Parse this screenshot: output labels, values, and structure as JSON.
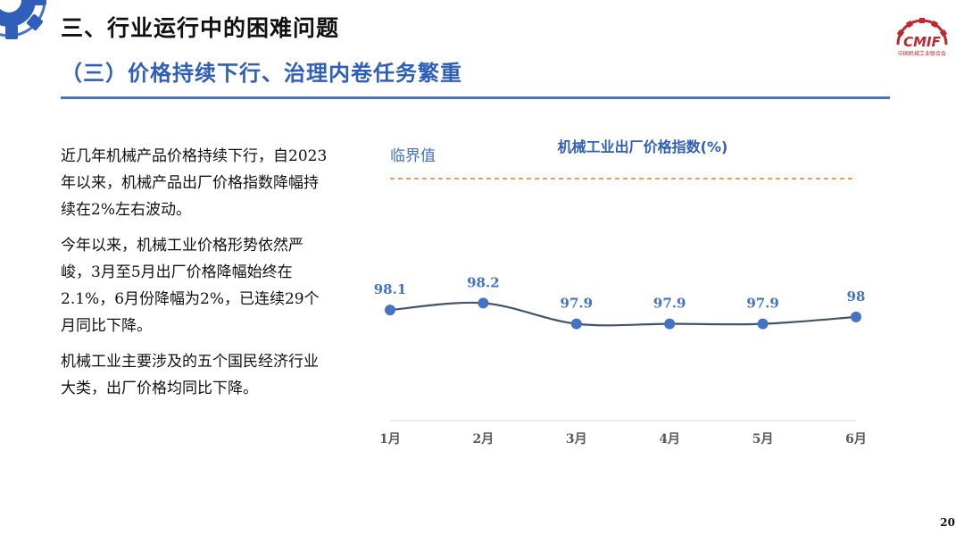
{
  "header": {
    "section_title": "三、行业运行中的困难问题",
    "sub_title": "（三）价格持续下行、治理内卷任务繁重",
    "logo_text": "CMIF",
    "logo_caption": "中国机械工业联合会"
  },
  "body": {
    "paragraphs": [
      "近几年机械产品价格持续下行，自2023年以来，机械产品出厂价格指数降幅持续在2%左右波动。",
      "今年以来，机械工业价格形势依然严峻，3月至5月出厂价格降幅始终在2.1%，6月份降幅为2%，已连续29个月同比下降。",
      "机械工业主要涉及的五个国民经济行业大类，出厂价格均同比下降。"
    ]
  },
  "chart_data": {
    "type": "line",
    "title": "机械工业出厂价格指数(%)",
    "categories": [
      "1月",
      "2月",
      "3月",
      "4月",
      "5月",
      "6月"
    ],
    "values": [
      98.1,
      98.2,
      97.9,
      97.9,
      97.9,
      98
    ],
    "value_labels": [
      "98.1",
      "98.2",
      "97.9",
      "97.9",
      "97.9",
      "98"
    ],
    "reference_line": {
      "label": "临界值",
      "value": 100
    },
    "ylim": [
      96.5,
      100
    ],
    "grid": false,
    "legend": "none",
    "colors": {
      "series": "#44546a",
      "marker": "#4472c4",
      "label": "#4472c4",
      "reference": "#ed7d31",
      "axis": "#d9d9d9"
    }
  },
  "footer": {
    "page_number": "20"
  }
}
